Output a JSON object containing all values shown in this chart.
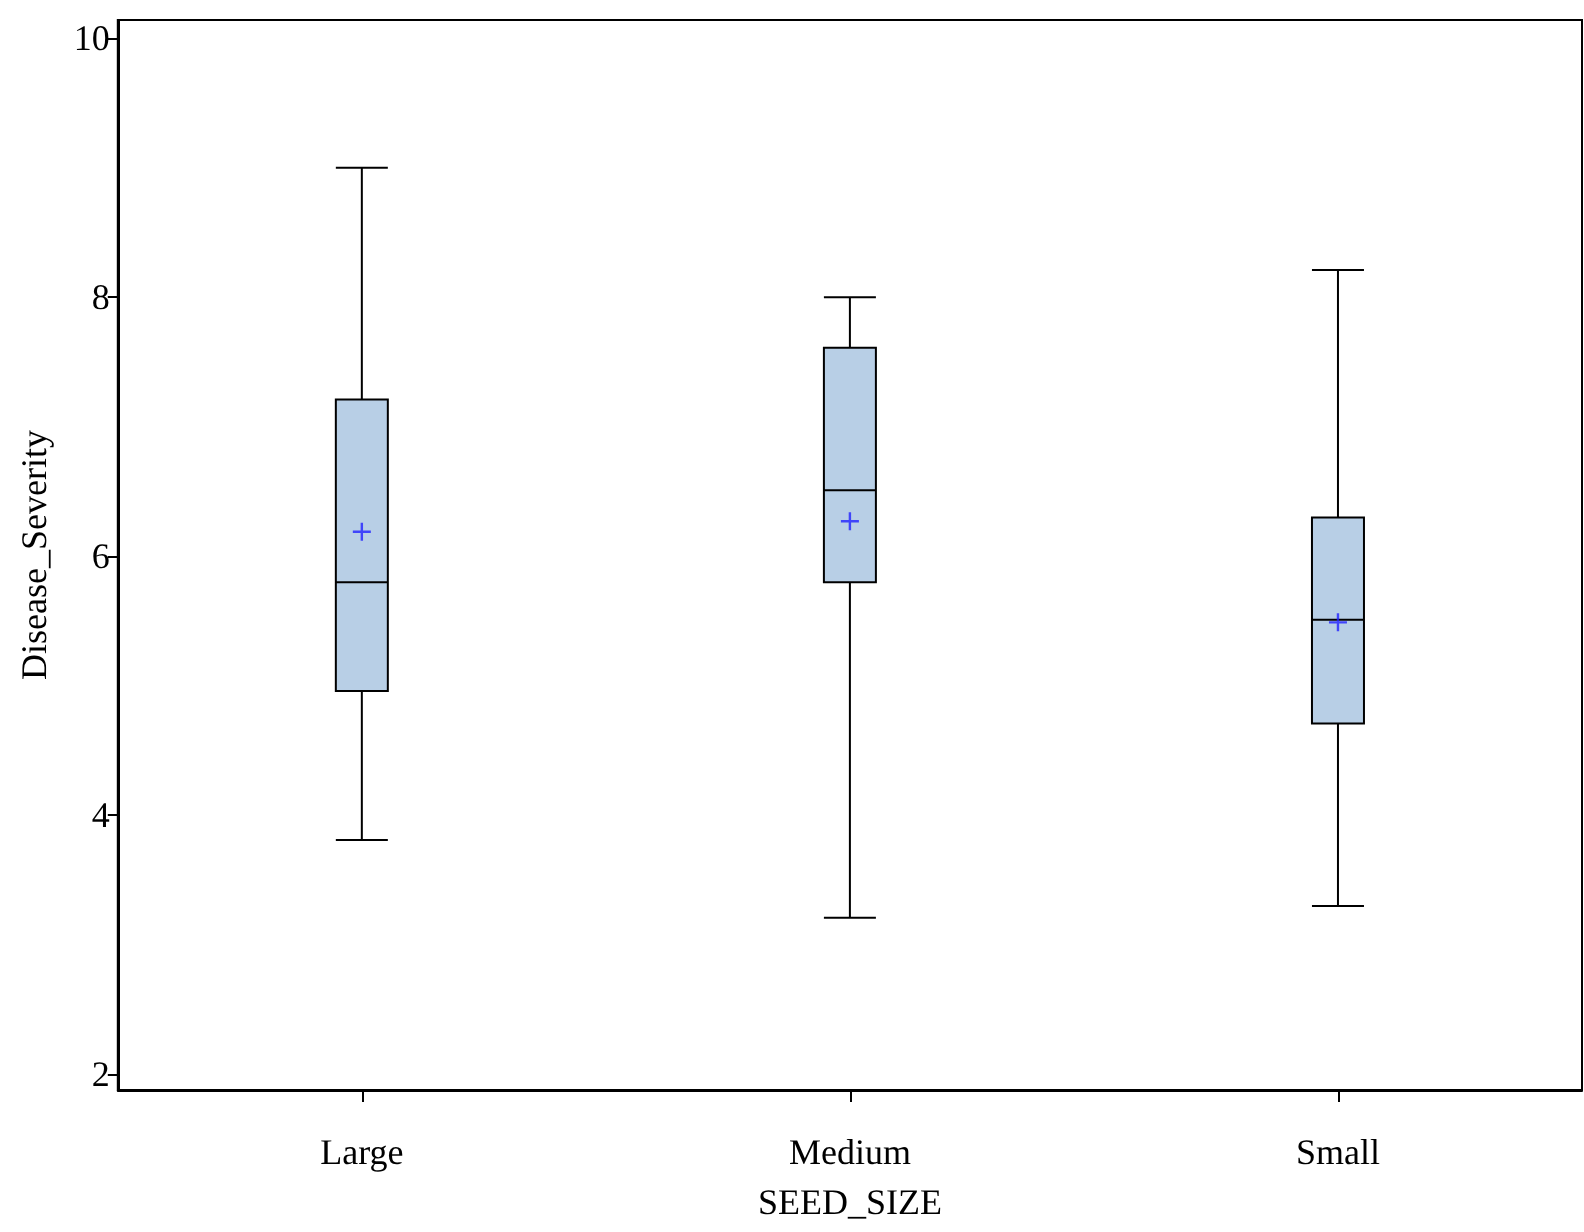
{
  "chart_data": {
    "type": "box",
    "xlabel": "SEED_SIZE",
    "ylabel": "Disease_Severity",
    "categories": [
      "Large",
      "Medium",
      "Small"
    ],
    "color": "#b8cfe6",
    "ylim": [
      1.88,
      10.14
    ],
    "yticks": [
      2,
      4,
      6,
      8,
      10
    ],
    "grid": false,
    "boxes": [
      {
        "low": 3.81,
        "q1": 4.96,
        "median": 5.8,
        "q3": 7.21,
        "high": 9.0,
        "mean": 6.19
      },
      {
        "low": 3.21,
        "q1": 5.8,
        "median": 6.51,
        "q3": 7.61,
        "high": 8.0,
        "mean": 6.27
      },
      {
        "low": 3.3,
        "q1": 4.71,
        "median": 5.51,
        "q3": 6.3,
        "high": 8.21,
        "mean": 5.49
      }
    ]
  }
}
